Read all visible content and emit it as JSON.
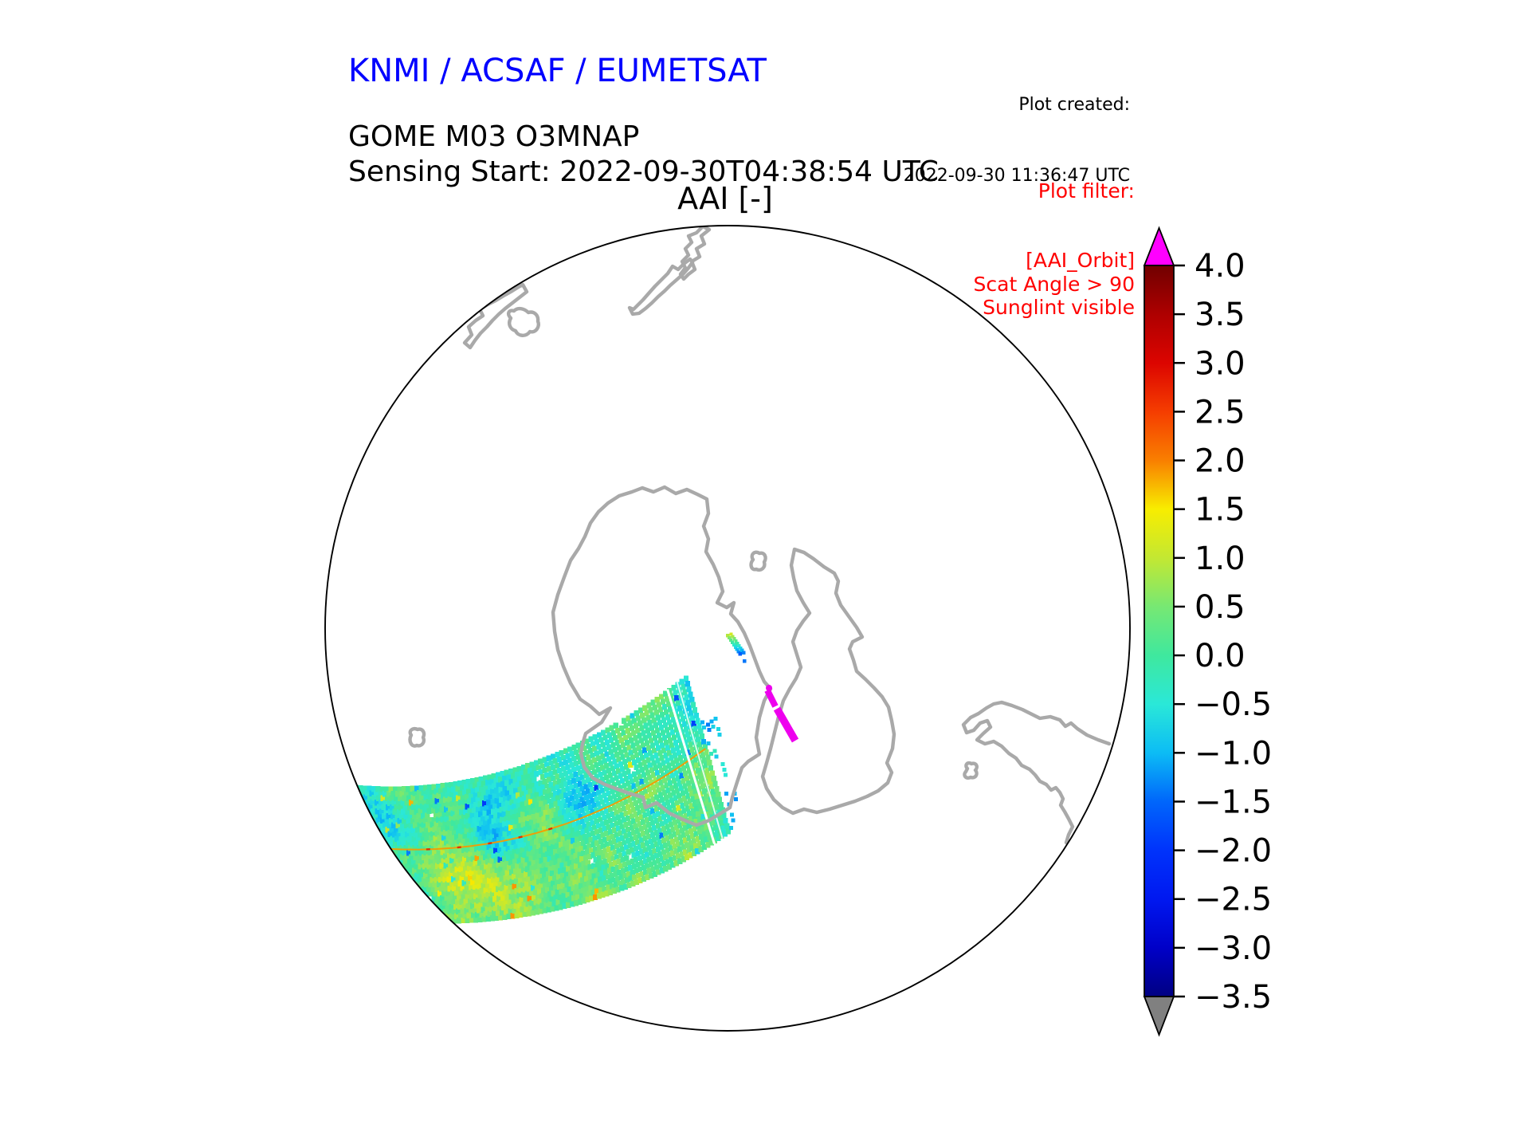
{
  "header": {
    "institution": "KNMI / ACSAF / EUMETSAT",
    "product": "GOME M03 O3MNAP",
    "sensing_start": "Sensing Start: 2022-09-30T04:38:54 UTC",
    "created_label": "Plot created:",
    "created_value": "2022-09-30 11:36:47 UTC",
    "map_title": "AAI [-]",
    "institution_color": "#0000ff"
  },
  "plot_filter": {
    "title": "Plot filter:",
    "lines": [
      "[AAI_Orbit]",
      "Scat Angle > 90",
      "Sunglint visible"
    ],
    "color": "#ff0000"
  },
  "colorbar": {
    "tick_labels": [
      "4.0",
      "3.5",
      "3.0",
      "2.5",
      "2.0",
      "1.5",
      "1.0",
      "0.5",
      "0.0",
      "−0.5",
      "−1.0",
      "−1.5",
      "−2.0",
      "−2.5",
      "−3.0",
      "−3.5"
    ],
    "tick_values": [
      4.0,
      3.5,
      3.0,
      2.5,
      2.0,
      1.5,
      1.0,
      0.5,
      0.0,
      -0.5,
      -1.0,
      -1.5,
      -2.0,
      -2.5,
      -3.0,
      -3.5
    ],
    "vmax": 4.0,
    "vmin": -3.5,
    "over_color": "#ff00ff",
    "under_color": "#808080",
    "stops": [
      {
        "v": -3.5,
        "c": "#000082"
      },
      {
        "v": -3.0,
        "c": "#0000c8"
      },
      {
        "v": -2.5,
        "c": "#0018f0"
      },
      {
        "v": -2.0,
        "c": "#0033fb"
      },
      {
        "v": -1.5,
        "c": "#0066fb"
      },
      {
        "v": -1.0,
        "c": "#0cbcf5"
      },
      {
        "v": -0.5,
        "c": "#2ae8d8"
      },
      {
        "v": 0.0,
        "c": "#3fe89e"
      },
      {
        "v": 0.5,
        "c": "#77e873"
      },
      {
        "v": 1.0,
        "c": "#c3e832"
      },
      {
        "v": 1.5,
        "c": "#f8ed00"
      },
      {
        "v": 2.0,
        "c": "#f97f00"
      },
      {
        "v": 2.5,
        "c": "#f53d00"
      },
      {
        "v": 3.0,
        "c": "#dc0500"
      },
      {
        "v": 3.5,
        "c": "#ae0000"
      },
      {
        "v": 4.0,
        "c": "#700000"
      }
    ]
  },
  "map": {
    "boundary_color": "#000000",
    "coast_color": "#a9a9a9",
    "sunglint_streak_color": "#ee00ee",
    "swath_seam_color": "#ffffff",
    "swath_centerline_color": "#f59b00",
    "swath_centerline_hot_color": "#e03000"
  },
  "chart_data": {
    "type": "heatmap",
    "title": "AAI [-]",
    "subtitle": "GOME M03 O3MNAP, Sensing Start 2022-09-30T04:38:54 UTC",
    "projection": "south polar stereographic",
    "colorbar": {
      "label": "AAI [-]",
      "range": [
        -3.5,
        4.0
      ],
      "tick_step": 0.5,
      "tick_labels": [
        "4.0",
        "3.5",
        "3.0",
        "2.5",
        "2.0",
        "1.5",
        "1.0",
        "0.5",
        "0.0",
        "−0.5",
        "−1.0",
        "−1.5",
        "−2.0",
        "−2.5",
        "−3.0",
        "−3.5"
      ],
      "over_arrow_color": "#ff00ff",
      "under_arrow_color": "#808080",
      "legend_position": "right"
    },
    "series_notes": {
      "main_swath": "single orbital swath crossing lower-left quadrant south of Australia toward Antarctica, AAI values mostly between -1.5 and +1.5 (greens/cyans with yellow patches and blue speckles), thin orange calibration line along track, white seam near right end",
      "small_fragment": "tiny diagonal swath fragment near map center with values from ~+1 (yellow-green) to ~-1.5 (blue)",
      "sunglint_streak": "magenta out-of-range streak (AAI > 4.0) near 165E coast, filtered sunglint region"
    },
    "filters_applied": [
      "[AAI_Orbit]",
      "Scat Angle > 90",
      "Sunglint visible"
    ]
  }
}
